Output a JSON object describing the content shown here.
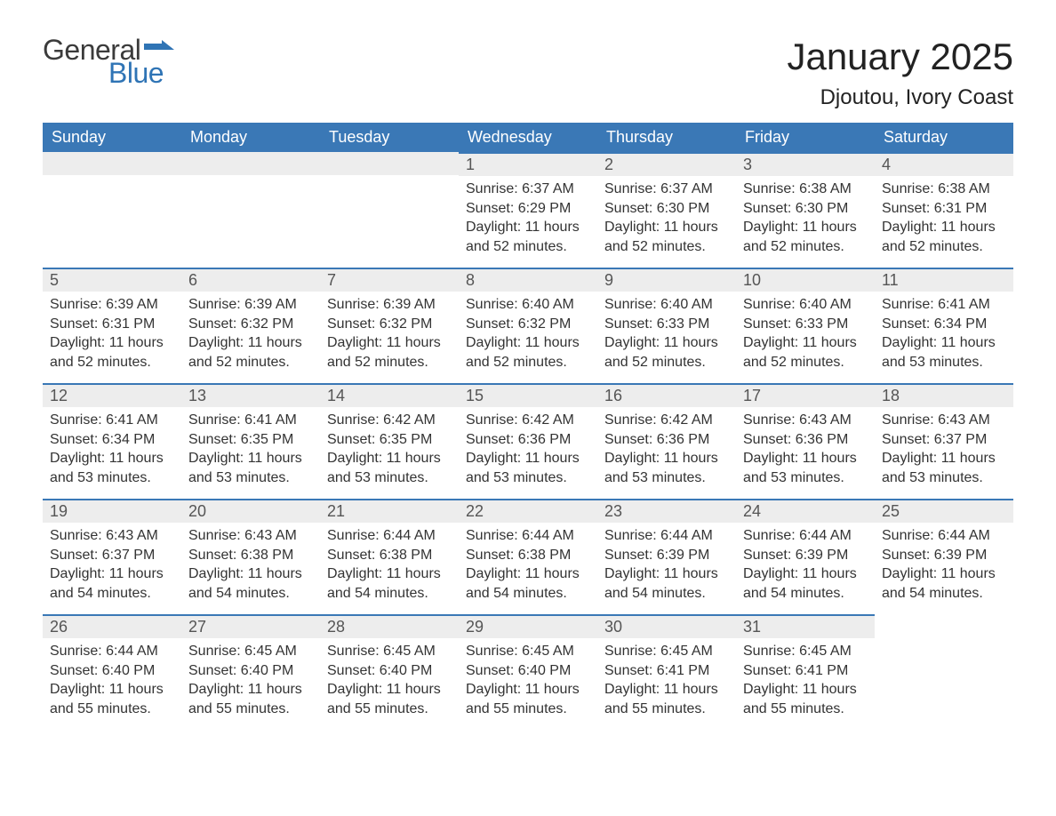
{
  "logo": {
    "word1": "General",
    "word2": "Blue",
    "brand_color": "#2f74b5"
  },
  "title": "January 2025",
  "location": "Djoutou, Ivory Coast",
  "colors": {
    "header_bg": "#3a78b6",
    "header_fg": "#ffffff",
    "daynum_bg": "#ededed",
    "week_divider": "#3a78b6",
    "text": "#333333"
  },
  "weekday_labels": [
    "Sunday",
    "Monday",
    "Tuesday",
    "Wednesday",
    "Thursday",
    "Friday",
    "Saturday"
  ],
  "field_labels": {
    "sunrise": "Sunrise",
    "sunset": "Sunset",
    "daylight": "Daylight"
  },
  "weeks": [
    [
      null,
      null,
      null,
      {
        "n": 1,
        "sunrise": "6:37 AM",
        "sunset": "6:29 PM",
        "daylight": "11 hours and 52 minutes."
      },
      {
        "n": 2,
        "sunrise": "6:37 AM",
        "sunset": "6:30 PM",
        "daylight": "11 hours and 52 minutes."
      },
      {
        "n": 3,
        "sunrise": "6:38 AM",
        "sunset": "6:30 PM",
        "daylight": "11 hours and 52 minutes."
      },
      {
        "n": 4,
        "sunrise": "6:38 AM",
        "sunset": "6:31 PM",
        "daylight": "11 hours and 52 minutes."
      }
    ],
    [
      {
        "n": 5,
        "sunrise": "6:39 AM",
        "sunset": "6:31 PM",
        "daylight": "11 hours and 52 minutes."
      },
      {
        "n": 6,
        "sunrise": "6:39 AM",
        "sunset": "6:32 PM",
        "daylight": "11 hours and 52 minutes."
      },
      {
        "n": 7,
        "sunrise": "6:39 AM",
        "sunset": "6:32 PM",
        "daylight": "11 hours and 52 minutes."
      },
      {
        "n": 8,
        "sunrise": "6:40 AM",
        "sunset": "6:32 PM",
        "daylight": "11 hours and 52 minutes."
      },
      {
        "n": 9,
        "sunrise": "6:40 AM",
        "sunset": "6:33 PM",
        "daylight": "11 hours and 52 minutes."
      },
      {
        "n": 10,
        "sunrise": "6:40 AM",
        "sunset": "6:33 PM",
        "daylight": "11 hours and 52 minutes."
      },
      {
        "n": 11,
        "sunrise": "6:41 AM",
        "sunset": "6:34 PM",
        "daylight": "11 hours and 53 minutes."
      }
    ],
    [
      {
        "n": 12,
        "sunrise": "6:41 AM",
        "sunset": "6:34 PM",
        "daylight": "11 hours and 53 minutes."
      },
      {
        "n": 13,
        "sunrise": "6:41 AM",
        "sunset": "6:35 PM",
        "daylight": "11 hours and 53 minutes."
      },
      {
        "n": 14,
        "sunrise": "6:42 AM",
        "sunset": "6:35 PM",
        "daylight": "11 hours and 53 minutes."
      },
      {
        "n": 15,
        "sunrise": "6:42 AM",
        "sunset": "6:36 PM",
        "daylight": "11 hours and 53 minutes."
      },
      {
        "n": 16,
        "sunrise": "6:42 AM",
        "sunset": "6:36 PM",
        "daylight": "11 hours and 53 minutes."
      },
      {
        "n": 17,
        "sunrise": "6:43 AM",
        "sunset": "6:36 PM",
        "daylight": "11 hours and 53 minutes."
      },
      {
        "n": 18,
        "sunrise": "6:43 AM",
        "sunset": "6:37 PM",
        "daylight": "11 hours and 53 minutes."
      }
    ],
    [
      {
        "n": 19,
        "sunrise": "6:43 AM",
        "sunset": "6:37 PM",
        "daylight": "11 hours and 54 minutes."
      },
      {
        "n": 20,
        "sunrise": "6:43 AM",
        "sunset": "6:38 PM",
        "daylight": "11 hours and 54 minutes."
      },
      {
        "n": 21,
        "sunrise": "6:44 AM",
        "sunset": "6:38 PM",
        "daylight": "11 hours and 54 minutes."
      },
      {
        "n": 22,
        "sunrise": "6:44 AM",
        "sunset": "6:38 PM",
        "daylight": "11 hours and 54 minutes."
      },
      {
        "n": 23,
        "sunrise": "6:44 AM",
        "sunset": "6:39 PM",
        "daylight": "11 hours and 54 minutes."
      },
      {
        "n": 24,
        "sunrise": "6:44 AM",
        "sunset": "6:39 PM",
        "daylight": "11 hours and 54 minutes."
      },
      {
        "n": 25,
        "sunrise": "6:44 AM",
        "sunset": "6:39 PM",
        "daylight": "11 hours and 54 minutes."
      }
    ],
    [
      {
        "n": 26,
        "sunrise": "6:44 AM",
        "sunset": "6:40 PM",
        "daylight": "11 hours and 55 minutes."
      },
      {
        "n": 27,
        "sunrise": "6:45 AM",
        "sunset": "6:40 PM",
        "daylight": "11 hours and 55 minutes."
      },
      {
        "n": 28,
        "sunrise": "6:45 AM",
        "sunset": "6:40 PM",
        "daylight": "11 hours and 55 minutes."
      },
      {
        "n": 29,
        "sunrise": "6:45 AM",
        "sunset": "6:40 PM",
        "daylight": "11 hours and 55 minutes."
      },
      {
        "n": 30,
        "sunrise": "6:45 AM",
        "sunset": "6:41 PM",
        "daylight": "11 hours and 55 minutes."
      },
      {
        "n": 31,
        "sunrise": "6:45 AM",
        "sunset": "6:41 PM",
        "daylight": "11 hours and 55 minutes."
      },
      null
    ]
  ]
}
